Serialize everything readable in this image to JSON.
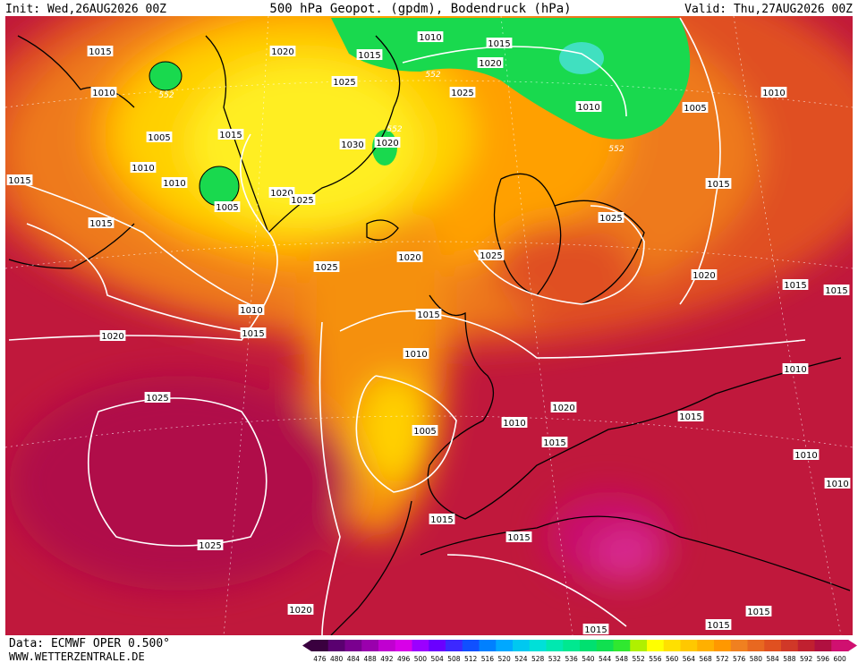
{
  "header": {
    "init": "Init: Wed,26AUG2026 00Z",
    "title": "500 hPa Geopot. (gpdm), Bodendruck (hPa)",
    "valid": "Valid: Thu,27AUG2026 00Z"
  },
  "footer": {
    "source": "Data: ECMWF OPER 0.500°",
    "website": "WWW.WETTERZENTRALE.DE"
  },
  "colorbar": {
    "values": [
      476,
      480,
      484,
      488,
      492,
      496,
      500,
      504,
      508,
      512,
      516,
      520,
      524,
      528,
      532,
      536,
      540,
      544,
      548,
      552,
      556,
      560,
      564,
      568,
      572,
      576,
      580,
      584,
      588,
      592,
      596,
      600
    ],
    "colors": [
      "#3a003f",
      "#5a0070",
      "#7a008f",
      "#9a00ad",
      "#c000d0",
      "#d800e8",
      "#9b00ff",
      "#6a00ff",
      "#3c28ff",
      "#1050ff",
      "#0080ff",
      "#00a8ff",
      "#00c8f0",
      "#00e0d8",
      "#00e8b0",
      "#00e890",
      "#00e070",
      "#10e050",
      "#30e830",
      "#b0f000",
      "#ffff00",
      "#ffe000",
      "#ffc800",
      "#ffb000",
      "#ff9800",
      "#f08020",
      "#e86820",
      "#e05020",
      "#d03828",
      "#c02030",
      "#b01040",
      "#d01070"
    ]
  },
  "isobar_labels": [
    "1015",
    "1010",
    "1005",
    "1010",
    "1015",
    "1010",
    "1015",
    "552",
    "1005",
    "1020",
    "1015",
    "1025",
    "1030",
    "1020",
    "552",
    "1020",
    "1025",
    "1025",
    "1020",
    "1010",
    "1015",
    "552",
    "1025",
    "1015",
    "1020",
    "1010",
    "552",
    "1005",
    "1010",
    "1015",
    "1025",
    "1025",
    "1020",
    "1015",
    "1015",
    "1010",
    "1015",
    "1020",
    "1015",
    "1010",
    "1025",
    "1005",
    "1010",
    "1020",
    "1015",
    "1015",
    "1010",
    "1010",
    "1010",
    "1015",
    "1015",
    "1025",
    "1020",
    "1015",
    "1015",
    "1015"
  ]
}
